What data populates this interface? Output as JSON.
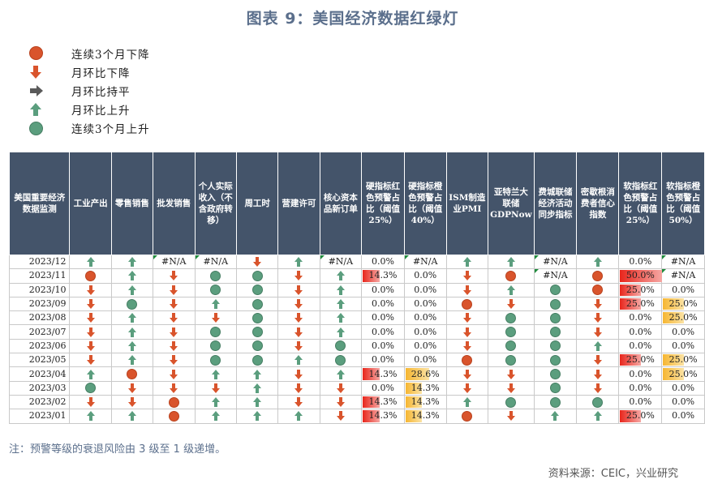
{
  "title": "图表 9：美国经济数据红绿灯",
  "legend": [
    {
      "icon": "dot-red",
      "label": "连续3个月下降"
    },
    {
      "icon": "arrow-down",
      "label": "月环比下降"
    },
    {
      "icon": "arrow-right",
      "label": "月环比持平"
    },
    {
      "icon": "arrow-up",
      "label": "月环比上升"
    },
    {
      "icon": "dot-green",
      "label": "连续3个月上升"
    }
  ],
  "colors": {
    "red": "#d9542c",
    "green": "#5b9e7e",
    "gray": "#5a5a5a",
    "header": "#44546a",
    "bar_red": "#e8261c",
    "bar_orange": "#f6b632"
  },
  "headers": [
    "美国重要经济数据监测",
    "工业产出",
    "零售销售",
    "批发销售",
    "个人实际收入（不含政府转移）",
    "周工时",
    "营建许可",
    "核心资本品新订单",
    "硬指标红色预警占比（阈值25%）",
    "硬指标橙色预警占比（阈值40%）",
    "ISM制造业PMI",
    "亚特兰大联储GDPNow",
    "费城联储经济活动同步指标",
    "密歇根消费者信心指数",
    "软指标红色预警占比（阈值25%）",
    "软指标橙色预警占比（阈值50%）"
  ],
  "rows": [
    {
      "date": "2023/12",
      "cells": [
        "up",
        "up",
        "N",
        "N",
        "down",
        "up",
        "N",
        "0.0%",
        "N",
        "up",
        "up",
        "N",
        "up",
        "0.0%",
        "N"
      ]
    },
    {
      "date": "2023/11",
      "cells": [
        "R",
        "up",
        "down",
        "G",
        "G",
        "down",
        "up",
        "14.3%",
        "0.0%",
        "down",
        "R",
        "N",
        "R",
        "50.0%",
        "N"
      ]
    },
    {
      "date": "2023/10",
      "cells": [
        "down",
        "up",
        "down",
        "G",
        "G",
        "down",
        "up",
        "0.0%",
        "0.0%",
        "down",
        "up",
        "G",
        "R",
        "25.0%",
        "0.0%"
      ]
    },
    {
      "date": "2023/09",
      "cells": [
        "down",
        "G",
        "down",
        "up",
        "G",
        "down",
        "up",
        "0.0%",
        "0.0%",
        "R",
        "down",
        "G",
        "down",
        "25.0%",
        "25.0%"
      ]
    },
    {
      "date": "2023/08",
      "cells": [
        "down",
        "up",
        "down",
        "down",
        "G",
        "down",
        "up",
        "0.0%",
        "0.0%",
        "down",
        "G",
        "G",
        "down",
        "0.0%",
        "25.0%"
      ]
    },
    {
      "date": "2023/07",
      "cells": [
        "down",
        "up",
        "down",
        "G",
        "G",
        "down",
        "up",
        "0.0%",
        "0.0%",
        "down",
        "G",
        "G",
        "down",
        "0.0%",
        "0.0%"
      ]
    },
    {
      "date": "2023/06",
      "cells": [
        "down",
        "up",
        "down",
        "G",
        "G",
        "down",
        "G",
        "0.0%",
        "0.0%",
        "down",
        "G",
        "G",
        "up",
        "0.0%",
        "0.0%"
      ]
    },
    {
      "date": "2023/05",
      "cells": [
        "down",
        "up",
        "down",
        "G",
        "G",
        "up",
        "G",
        "0.0%",
        "0.0%",
        "R",
        "G",
        "G",
        "down",
        "25.0%",
        "25.0%"
      ]
    },
    {
      "date": "2023/04",
      "cells": [
        "up",
        "R",
        "down",
        "up",
        "up",
        "down",
        "up",
        "14.3%",
        "28.6%",
        "down",
        "down",
        "G",
        "down",
        "0.0%",
        "25.0%"
      ]
    },
    {
      "date": "2023/03",
      "cells": [
        "G",
        "down",
        "down",
        "down",
        "up",
        "down",
        "down",
        "0.0%",
        "14.3%",
        "down",
        "down",
        "G",
        "down",
        "0.0%",
        "0.0%"
      ]
    },
    {
      "date": "2023/02",
      "cells": [
        "down",
        "down",
        "R",
        "up",
        "up",
        "down",
        "down",
        "14.3%",
        "14.3%",
        "up",
        "G",
        "G",
        "G",
        "0.0%",
        "0.0%"
      ]
    },
    {
      "date": "2023/01",
      "cells": [
        "up",
        "up",
        "R",
        "up",
        "up",
        "up",
        "down",
        "14.3%",
        "14.3%",
        "R",
        "down",
        "up",
        "up",
        "25.0%",
        "0.0%"
      ]
    }
  ],
  "na_text": "#N/A",
  "note": "注：预警等级的衰退风险由 3 级至 1 级递增。",
  "source": "资料来源：CEIC，兴业研究"
}
